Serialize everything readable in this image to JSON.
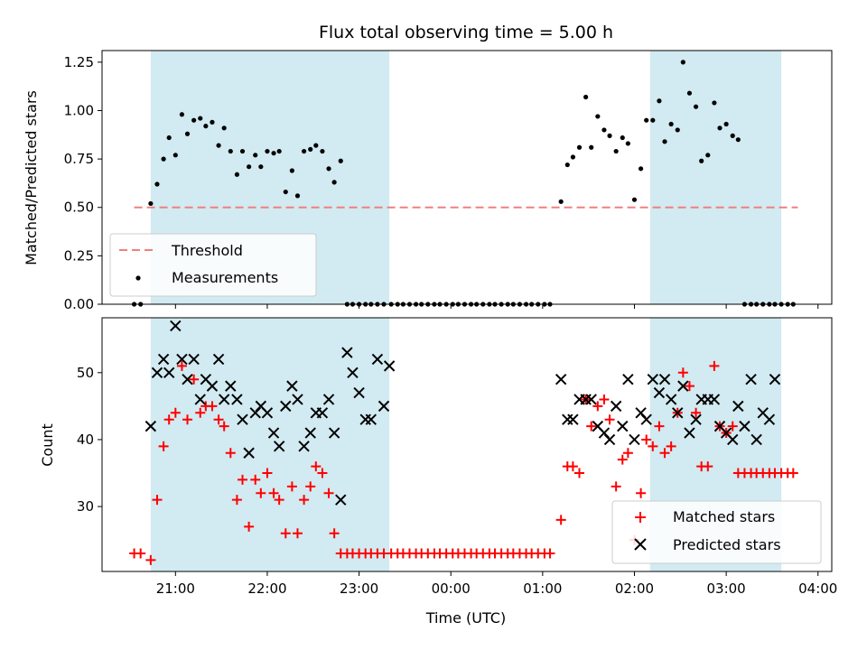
{
  "chart_data": {
    "type": "scatter",
    "title": "Flux total observing time = 5.00 h",
    "xlabel": "Time (UTC)",
    "x_unit": "hours (UTC clock; values >24 are after midnight)",
    "xlim": [
      20.2,
      28.15
    ],
    "x_ticks": [
      {
        "value": 21,
        "label": "21:00"
      },
      {
        "value": 22,
        "label": "22:00"
      },
      {
        "value": 23,
        "label": "23:00"
      },
      {
        "value": 24,
        "label": "00:00"
      },
      {
        "value": 25,
        "label": "01:00"
      },
      {
        "value": 26,
        "label": "02:00"
      },
      {
        "value": 27,
        "label": "03:00"
      },
      {
        "value": 28,
        "label": "04:00"
      }
    ],
    "observing_windows": [
      [
        20.73,
        23.33
      ],
      [
        26.17,
        27.6
      ]
    ],
    "window_color": "#add8e6",
    "top": {
      "ylabel": "Matched/Predicted stars",
      "ylim": [
        0,
        1.31
      ],
      "y_ticks": [
        "0.00",
        "0.25",
        "0.50",
        "0.75",
        "1.00",
        "1.25"
      ],
      "threshold": {
        "name": "Threshold",
        "value": 0.5,
        "x_range": [
          20.55,
          27.78
        ],
        "color": "#f08080"
      },
      "measurements": {
        "name": "Measurements",
        "color": "#000000",
        "x": [
          20.55,
          20.62,
          20.73,
          20.8,
          20.87,
          20.93,
          21.0,
          21.07,
          21.13,
          21.2,
          21.27,
          21.33,
          21.4,
          21.47,
          21.53,
          21.6,
          21.67,
          21.73,
          21.8,
          21.87,
          21.93,
          22.0,
          22.07,
          22.13,
          22.2,
          22.27,
          22.33,
          22.4,
          22.47,
          22.53,
          22.6,
          22.67,
          22.73,
          22.8,
          22.87,
          22.93,
          23.0,
          23.07,
          23.13,
          23.2,
          23.27,
          23.35,
          23.42,
          23.48,
          23.55,
          23.62,
          23.68,
          23.75,
          23.82,
          23.88,
          23.95,
          24.02,
          24.08,
          24.15,
          24.22,
          24.28,
          24.35,
          24.42,
          24.48,
          24.55,
          24.62,
          24.68,
          24.75,
          24.82,
          24.88,
          24.95,
          25.02,
          25.08,
          25.2,
          25.27,
          25.33,
          25.4,
          25.47,
          25.53,
          25.6,
          25.67,
          25.73,
          25.8,
          25.87,
          25.93,
          26.0,
          26.07,
          26.13,
          26.2,
          26.27,
          26.33,
          26.4,
          26.47,
          26.53,
          26.6,
          26.67,
          26.73,
          26.8,
          26.87,
          26.93,
          27.0,
          27.07,
          27.13,
          27.2,
          27.27,
          27.33,
          27.4,
          27.47,
          27.53,
          27.6,
          27.67,
          27.73
        ],
        "y": [
          0.0,
          0.0,
          0.52,
          0.62,
          0.75,
          0.86,
          0.77,
          0.98,
          0.88,
          0.95,
          0.96,
          0.92,
          0.94,
          0.82,
          0.91,
          0.79,
          0.67,
          0.79,
          0.71,
          0.77,
          0.71,
          0.79,
          0.78,
          0.79,
          0.58,
          0.69,
          0.56,
          0.79,
          0.8,
          0.82,
          0.79,
          0.7,
          0.63,
          0.74,
          0.0,
          0.0,
          0.0,
          0.0,
          0.0,
          0.0,
          0.0,
          0.0,
          0.0,
          0.0,
          0.0,
          0.0,
          0.0,
          0.0,
          0.0,
          0.0,
          0.0,
          0.0,
          0.0,
          0.0,
          0.0,
          0.0,
          0.0,
          0.0,
          0.0,
          0.0,
          0.0,
          0.0,
          0.0,
          0.0,
          0.0,
          0.0,
          0.0,
          0.0,
          0.53,
          0.72,
          0.76,
          0.81,
          1.07,
          0.81,
          0.97,
          0.9,
          0.87,
          0.79,
          0.86,
          0.83,
          0.54,
          0.7,
          0.95,
          0.95,
          1.05,
          0.84,
          0.93,
          0.9,
          1.25,
          1.09,
          1.02,
          0.74,
          0.77,
          1.04,
          0.91,
          0.93,
          0.87,
          0.85,
          0.0,
          0.0,
          0.0,
          0.0,
          0.0,
          0.0,
          0.0,
          0.0,
          0.0
        ]
      },
      "legend_location": "lower-left"
    },
    "bottom": {
      "ylabel": "Count",
      "ylim": [
        20.3,
        58.2
      ],
      "y_ticks": [
        "30",
        "40",
        "50"
      ],
      "series": [
        {
          "name": "Matched stars",
          "marker": "+",
          "color": "#ff0000",
          "x": [
            20.55,
            20.62,
            20.73,
            20.8,
            20.87,
            20.93,
            21.0,
            21.07,
            21.13,
            21.2,
            21.27,
            21.33,
            21.4,
            21.47,
            21.53,
            21.6,
            21.67,
            21.73,
            21.8,
            21.87,
            21.93,
            22.0,
            22.07,
            22.13,
            22.2,
            22.27,
            22.33,
            22.4,
            22.47,
            22.53,
            22.6,
            22.67,
            22.73,
            22.8,
            22.87,
            22.93,
            23.0,
            23.07,
            23.13,
            23.2,
            23.27,
            23.35,
            23.42,
            23.48,
            23.55,
            23.62,
            23.68,
            23.75,
            23.82,
            23.88,
            23.95,
            24.02,
            24.08,
            24.15,
            24.22,
            24.28,
            24.35,
            24.42,
            24.48,
            24.55,
            24.62,
            24.68,
            24.75,
            24.82,
            24.88,
            24.95,
            25.02,
            25.08,
            25.2,
            25.27,
            25.33,
            25.4,
            25.47,
            25.53,
            25.6,
            25.67,
            25.73,
            25.8,
            25.87,
            25.93,
            26.0,
            26.07,
            26.13,
            26.2,
            26.27,
            26.33,
            26.4,
            26.47,
            26.53,
            26.6,
            26.67,
            26.73,
            26.8,
            26.87,
            26.93,
            27.0,
            27.07,
            27.13,
            27.2,
            27.27,
            27.33,
            27.4,
            27.47,
            27.53,
            27.6,
            27.67,
            27.73
          ],
          "y": [
            23,
            23,
            22,
            31,
            39,
            43,
            44,
            51,
            43,
            49,
            44,
            45,
            45,
            43,
            42,
            38,
            31,
            34,
            27,
            34,
            32,
            35,
            32,
            31,
            26,
            33,
            26,
            31,
            33,
            36,
            35,
            32,
            26,
            23,
            23,
            23,
            23,
            23,
            23,
            23,
            23,
            23,
            23,
            23,
            23,
            23,
            23,
            23,
            23,
            23,
            23,
            23,
            23,
            23,
            23,
            23,
            23,
            23,
            23,
            23,
            23,
            23,
            23,
            23,
            23,
            23,
            23,
            23,
            28,
            36,
            36,
            35,
            46,
            42,
            45,
            46,
            43,
            33,
            37,
            38,
            25,
            32,
            40,
            39,
            42,
            38,
            39,
            44,
            50,
            48,
            44,
            36,
            36,
            51,
            42,
            41,
            42,
            35,
            35,
            35,
            35,
            35,
            35,
            35,
            35,
            35,
            35
          ]
        },
        {
          "name": "Predicted stars",
          "marker": "x",
          "color": "#000000",
          "x": [
            20.73,
            20.8,
            20.87,
            20.93,
            21.0,
            21.07,
            21.13,
            21.2,
            21.27,
            21.33,
            21.4,
            21.47,
            21.53,
            21.6,
            21.67,
            21.73,
            21.8,
            21.87,
            21.93,
            22.0,
            22.07,
            22.13,
            22.2,
            22.27,
            22.33,
            22.4,
            22.47,
            22.53,
            22.6,
            22.67,
            22.73,
            22.8,
            22.87,
            22.93,
            23.0,
            23.07,
            23.13,
            23.2,
            23.27,
            23.33,
            25.2,
            25.27,
            25.33,
            25.4,
            25.47,
            25.53,
            25.6,
            25.67,
            25.73,
            25.8,
            25.87,
            25.93,
            26.0,
            26.07,
            26.13,
            26.2,
            26.27,
            26.33,
            26.4,
            26.47,
            26.53,
            26.6,
            26.67,
            26.73,
            26.8,
            26.87,
            26.93,
            27.0,
            27.07,
            27.13,
            27.2,
            27.27,
            27.33,
            27.4,
            27.47,
            27.53
          ],
          "y": [
            42,
            50,
            52,
            50,
            57,
            52,
            49,
            52,
            46,
            49,
            48,
            52,
            46,
            48,
            46,
            43,
            38,
            44,
            45,
            44,
            41,
            39,
            45,
            48,
            46,
            39,
            41,
            44,
            44,
            46,
            41,
            31,
            53,
            50,
            47,
            43,
            43,
            52,
            45,
            51,
            49,
            43,
            43,
            46,
            46,
            46,
            42,
            41,
            40,
            45,
            42,
            49,
            40,
            44,
            43,
            49,
            47,
            49,
            46,
            44,
            48,
            41,
            43,
            46,
            46,
            46,
            42,
            41,
            40,
            45,
            42,
            49,
            40,
            44,
            43,
            49
          ]
        }
      ],
      "legend_location": "lower-right"
    }
  }
}
